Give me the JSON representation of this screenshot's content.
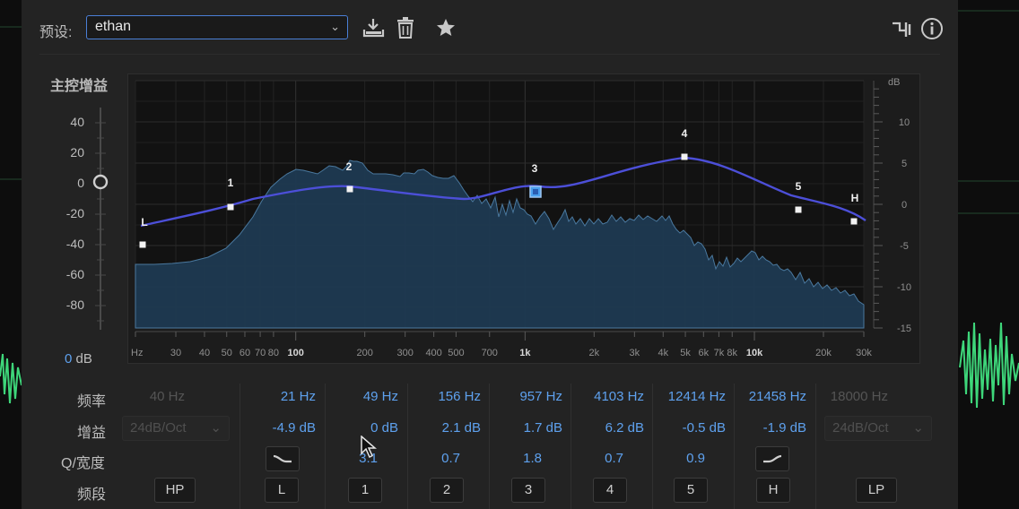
{
  "header": {
    "preset_label": "预设:",
    "preset_value": "ethan",
    "icons": [
      "save-preset-icon",
      "delete-preset-icon",
      "favorite-star-icon",
      "routing-icon",
      "info-icon"
    ]
  },
  "master_gain": {
    "title": "主控增益",
    "ticks": [
      "40",
      "20",
      "0",
      "-20",
      "-40",
      "-60",
      "-80"
    ],
    "value": "0",
    "unit": "dB",
    "slider_value_db": 0
  },
  "graph": {
    "right_axis_unit": "dB",
    "right_ticks": [
      "10",
      "5",
      "0",
      "-5",
      "-10",
      "-15"
    ],
    "freq_ticks": [
      "Hz",
      "30",
      "40",
      "50",
      "60",
      "70",
      "80",
      "100",
      "200",
      "300",
      "400",
      "500",
      "700",
      "1k",
      "2k",
      "3k",
      "4k",
      "5k",
      "6k",
      "7k",
      "8k",
      "10k",
      "20k",
      "30k"
    ],
    "bold_freq_ticks": [
      "100",
      "1k",
      "10k"
    ],
    "nodes": [
      "L",
      "1",
      "2",
      "3",
      "4",
      "5",
      "H"
    ]
  },
  "bands": {
    "row_labels": {
      "frequency": "频率",
      "gain": "增益",
      "q": "Q/宽度",
      "band": "频段"
    },
    "hp": {
      "frequency": "40 Hz",
      "slope": "24dB/Oct",
      "button": "HP"
    },
    "lp": {
      "frequency": "18000 Hz",
      "slope": "24dB/Oct",
      "button": "LP"
    },
    "columns": [
      {
        "frequency": "21 Hz",
        "gain": "-4.9 dB",
        "q": "",
        "button": "L"
      },
      {
        "frequency": "49 Hz",
        "gain": "0 dB",
        "q": "3.1",
        "button": "1"
      },
      {
        "frequency": "156 Hz",
        "gain": "2.1 dB",
        "q": "0.7",
        "button": "2"
      },
      {
        "frequency": "957 Hz",
        "gain": "1.7 dB",
        "q": "1.8",
        "button": "3"
      },
      {
        "frequency": "4103 Hz",
        "gain": "6.2 dB",
        "q": "0.7",
        "button": "4"
      },
      {
        "frequency": "12414 Hz",
        "gain": "-0.5 dB",
        "q": "0.9",
        "button": "5"
      },
      {
        "frequency": "21458 Hz",
        "gain": "-1.9 dB",
        "q": "",
        "button": "H"
      }
    ]
  },
  "colors": {
    "accent": "#5ea1ee",
    "curve": "#4c4fd8",
    "spectrum_fill": "#1e3a52",
    "spectrum_stroke": "#4d7ea6"
  }
}
